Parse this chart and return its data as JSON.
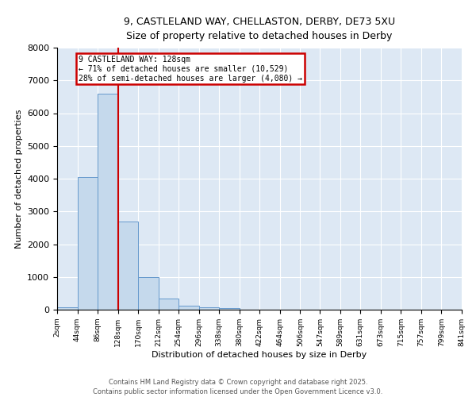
{
  "title_line1": "9, CASTLELAND WAY, CHELLASTON, DERBY, DE73 5XU",
  "title_line2": "Size of property relative to detached houses in Derby",
  "xlabel": "Distribution of detached houses by size in Derby",
  "ylabel": "Number of detached properties",
  "bins": [
    2,
    44,
    86,
    128,
    170,
    212,
    254,
    296,
    338,
    380,
    422,
    464,
    506,
    547,
    589,
    631,
    673,
    715,
    757,
    799,
    841
  ],
  "bin_labels": [
    "2sqm",
    "44sqm",
    "86sqm",
    "128sqm",
    "170sqm",
    "212sqm",
    "254sqm",
    "296sqm",
    "338sqm",
    "380sqm",
    "422sqm",
    "464sqm",
    "506sqm",
    "547sqm",
    "589sqm",
    "631sqm",
    "673sqm",
    "715sqm",
    "757sqm",
    "799sqm",
    "841sqm"
  ],
  "values": [
    75,
    4050,
    6600,
    2700,
    1000,
    350,
    130,
    70,
    50,
    0,
    0,
    0,
    0,
    0,
    0,
    0,
    0,
    0,
    0,
    0
  ],
  "bar_color": "#c5d9ec",
  "bar_edge_color": "#6699cc",
  "red_line_x": 128,
  "annotation_title": "9 CASTLELAND WAY: 128sqm",
  "annotation_line2": "← 71% of detached houses are smaller (10,529)",
  "annotation_line3": "28% of semi-detached houses are larger (4,080) →",
  "annotation_box_color": "#cc0000",
  "ylim": [
    0,
    8000
  ],
  "yticks": [
    0,
    1000,
    2000,
    3000,
    4000,
    5000,
    6000,
    7000,
    8000
  ],
  "background_color": "#dde8f4",
  "footer_line1": "Contains HM Land Registry data © Crown copyright and database right 2025.",
  "footer_line2": "Contains public sector information licensed under the Open Government Licence v3.0."
}
